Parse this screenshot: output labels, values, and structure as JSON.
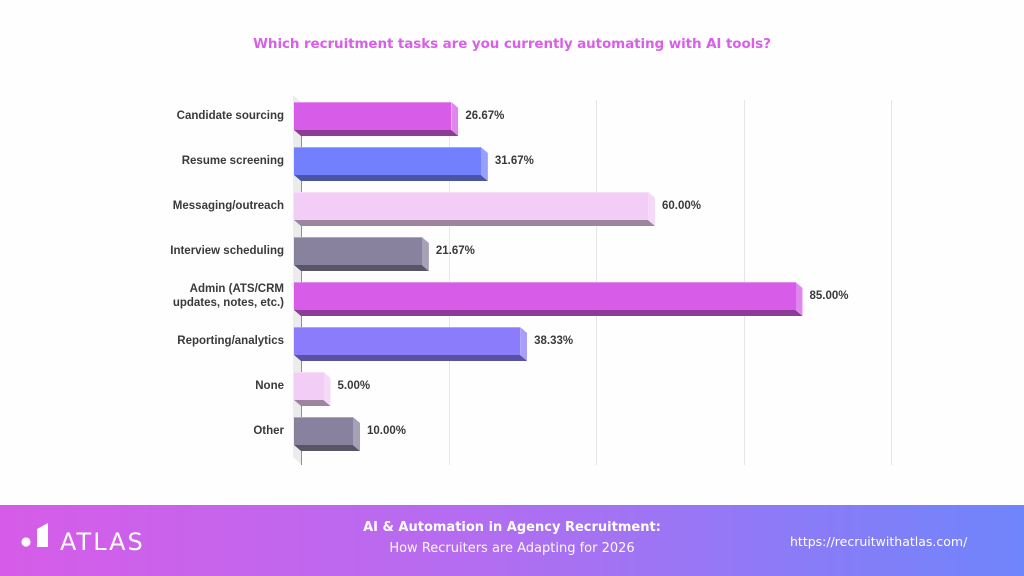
{
  "chart_data": {
    "type": "bar",
    "orientation": "horizontal",
    "style": "3d",
    "title": "Which recruitment tasks are you currently automating with AI tools?",
    "categories": [
      "Candidate sourcing",
      "Resume screening",
      "Messaging/outreach",
      "Interview scheduling",
      "Admin (ATS/CRM\nupdates, notes, etc.)",
      "Reporting/analytics",
      "None",
      "Other"
    ],
    "values": [
      26.67,
      31.67,
      60.0,
      21.67,
      85.0,
      38.33,
      5.0,
      10.0
    ],
    "value_labels": [
      "26.67%",
      "31.67%",
      "60.00%",
      "21.67%",
      "85.00%",
      "38.33%",
      "5.00%",
      "10.00%"
    ],
    "colors": [
      "#d75de8",
      "#7380fd",
      "#f2cdf5",
      "#88829f",
      "#d75de8",
      "#8a7cfb",
      "#f2cdf5",
      "#88829f"
    ],
    "xlabel": "",
    "ylabel": "",
    "xlim": [
      0,
      100
    ],
    "grid": true,
    "gridlines_at": [
      0,
      25,
      50,
      75,
      100
    ],
    "tick_labels_shown": false,
    "legend": null
  },
  "colors": {
    "title": "#d95fe8",
    "footer_gradient_start": "#d65ce8",
    "footer_gradient_end": "#6f85fb"
  },
  "footer": {
    "brand": "ATLAS",
    "title": "AI & Automation in Agency Recruitment:",
    "subtitle": "How Recruiters are Adapting for 2026",
    "url": "https://recruitwithatlas.com/",
    "logo_icon": "atlas-logo-icon"
  }
}
